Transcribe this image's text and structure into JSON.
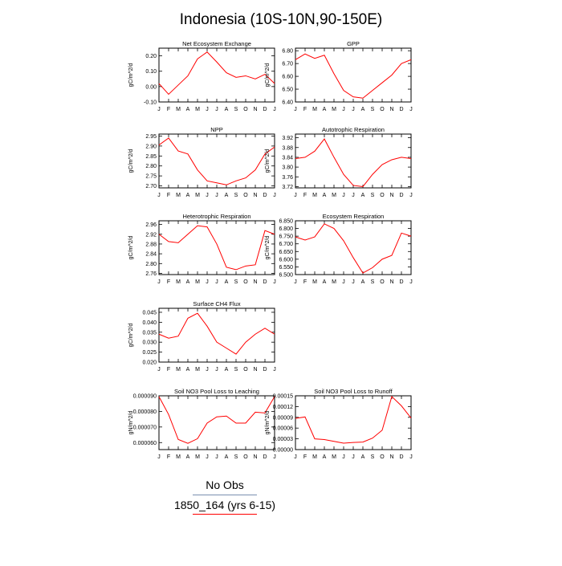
{
  "title": "Indonesia (10S-10N,90-150E)",
  "months": [
    "J",
    "F",
    "M",
    "A",
    "M",
    "J",
    "J",
    "A",
    "S",
    "O",
    "N",
    "D",
    "J"
  ],
  "legend": [
    {
      "label": "No Obs",
      "color": "#7a8fb0"
    },
    {
      "label": "1850_164 (yrs 6-15)",
      "color": "#ff0000"
    }
  ],
  "chart_data": [
    {
      "type": "line",
      "title": "Net Ecosystem Exchange",
      "ylabel": "gC/m^2/d",
      "ylim": [
        -0.1,
        0.25
      ],
      "yticks": [
        -0.1,
        0.0,
        0.1,
        0.2
      ],
      "yticklabels": [
        "-0.10",
        "0.00",
        "0.10",
        "0.20"
      ],
      "series": [
        {
          "color": "#ff0000",
          "values": [
            0.02,
            -0.05,
            0.01,
            0.07,
            0.18,
            0.225,
            0.16,
            0.09,
            0.06,
            0.07,
            0.05,
            0.08,
            0.02
          ]
        }
      ]
    },
    {
      "type": "line",
      "title": "GPP",
      "ylabel": "gC/m^2/d",
      "ylim": [
        6.4,
        6.82
      ],
      "yticks": [
        6.4,
        6.5,
        6.6,
        6.7,
        6.8
      ],
      "yticklabels": [
        "6.40",
        "6.50",
        "6.60",
        "6.70",
        "6.80"
      ],
      "series": [
        {
          "color": "#ff0000",
          "values": [
            6.73,
            6.775,
            6.74,
            6.765,
            6.62,
            6.49,
            6.44,
            6.43,
            6.49,
            6.55,
            6.61,
            6.7,
            6.73
          ]
        }
      ]
    },
    {
      "type": "line",
      "title": "NPP",
      "ylabel": "gC/m^2/d",
      "ylim": [
        2.69,
        2.96
      ],
      "yticks": [
        2.7,
        2.75,
        2.8,
        2.85,
        2.9,
        2.95
      ],
      "yticklabels": [
        "2.70",
        "2.75",
        "2.80",
        "2.85",
        "2.90",
        "2.95"
      ],
      "series": [
        {
          "color": "#ff0000",
          "values": [
            2.905,
            2.94,
            2.875,
            2.86,
            2.78,
            2.725,
            2.715,
            2.705,
            2.725,
            2.74,
            2.78,
            2.86,
            2.895
          ]
        }
      ]
    },
    {
      "type": "line",
      "title": "Autotrophic Respiration",
      "ylabel": "gC/m^2/d",
      "ylim": [
        3.715,
        3.935
      ],
      "yticks": [
        3.72,
        3.76,
        3.8,
        3.84,
        3.88,
        3.92
      ],
      "yticklabels": [
        "3.72",
        "3.76",
        "3.80",
        "3.84",
        "3.88",
        "3.92"
      ],
      "series": [
        {
          "color": "#ff0000",
          "values": [
            3.835,
            3.84,
            3.865,
            3.915,
            3.84,
            3.77,
            3.725,
            3.72,
            3.77,
            3.81,
            3.83,
            3.84,
            3.835
          ]
        }
      ]
    },
    {
      "type": "line",
      "title": "Heterotrophic Respiration",
      "ylabel": "gC/m^2/d",
      "ylim": [
        2.755,
        2.975
      ],
      "yticks": [
        2.76,
        2.8,
        2.84,
        2.88,
        2.92,
        2.96
      ],
      "yticklabels": [
        "2.76",
        "2.80",
        "2.84",
        "2.88",
        "2.92",
        "2.96"
      ],
      "series": [
        {
          "color": "#ff0000",
          "values": [
            2.92,
            2.89,
            2.885,
            2.92,
            2.955,
            2.95,
            2.88,
            2.785,
            2.775,
            2.79,
            2.795,
            2.935,
            2.92
          ]
        }
      ]
    },
    {
      "type": "line",
      "title": "Ecosystem Respiration",
      "ylabel": "gC/m^2/d",
      "ylim": [
        6.5,
        6.85
      ],
      "yticks": [
        6.5,
        6.55,
        6.6,
        6.65,
        6.7,
        6.75,
        6.8,
        6.85
      ],
      "yticklabels": [
        "6.500",
        "6.550",
        "6.600",
        "6.650",
        "6.700",
        "6.750",
        "6.800",
        "6.850"
      ],
      "series": [
        {
          "color": "#ff0000",
          "values": [
            6.745,
            6.725,
            6.745,
            6.83,
            6.8,
            6.72,
            6.61,
            6.51,
            6.545,
            6.6,
            6.625,
            6.77,
            6.75
          ]
        }
      ]
    },
    {
      "type": "line",
      "title": "Surface CH4 Flux",
      "ylabel": "gC/m^2/d",
      "ylim": [
        0.02,
        0.047
      ],
      "yticks": [
        0.02,
        0.025,
        0.03,
        0.035,
        0.04,
        0.045
      ],
      "yticklabels": [
        "0.020",
        "0.025",
        "0.030",
        "0.035",
        "0.040",
        "0.045"
      ],
      "series": [
        {
          "color": "#ff0000",
          "values": [
            0.034,
            0.032,
            0.033,
            0.042,
            0.0445,
            0.038,
            0.03,
            0.027,
            0.024,
            0.03,
            0.034,
            0.037,
            0.034
          ]
        }
      ]
    },
    null,
    {
      "type": "line",
      "title": "Soil NO3 Pool Loss to Leaching",
      "ylabel": "gN/m^2/d",
      "ylim": [
        5.55e-05,
        9e-05
      ],
      "yticks": [
        6e-05,
        7e-05,
        8e-05,
        9e-05
      ],
      "yticklabels": [
        "0.000060",
        "0.000070",
        "0.000080",
        "0.000090"
      ],
      "series": [
        {
          "color": "#ff0000",
          "values": [
            8.95e-05,
            7.8e-05,
            6.2e-05,
            5.95e-05,
            6.25e-05,
            7.25e-05,
            7.65e-05,
            7.7e-05,
            7.25e-05,
            7.25e-05,
            7.95e-05,
            7.9e-05,
            8.95e-05
          ]
        }
      ]
    },
    {
      "type": "line",
      "title": "Soil NO3 Pool Loss to Runoff",
      "ylabel": "gN/m^2/d",
      "ylim": [
        0,
        0.00015
      ],
      "yticks": [
        0,
        3e-05,
        6e-05,
        9e-05,
        0.00012,
        0.00015
      ],
      "yticklabels": [
        "0.00000",
        "0.00003",
        "0.00006",
        "0.00009",
        "0.00012",
        "0.00015"
      ],
      "series": [
        {
          "color": "#ff0000",
          "values": [
            8.7e-05,
            9.1e-05,
            3e-05,
            2.8e-05,
            2.3e-05,
            1.8e-05,
            2e-05,
            2.1e-05,
            3.2e-05,
            5.4e-05,
            0.000148,
            0.000122,
            8.8e-05
          ]
        }
      ]
    }
  ]
}
